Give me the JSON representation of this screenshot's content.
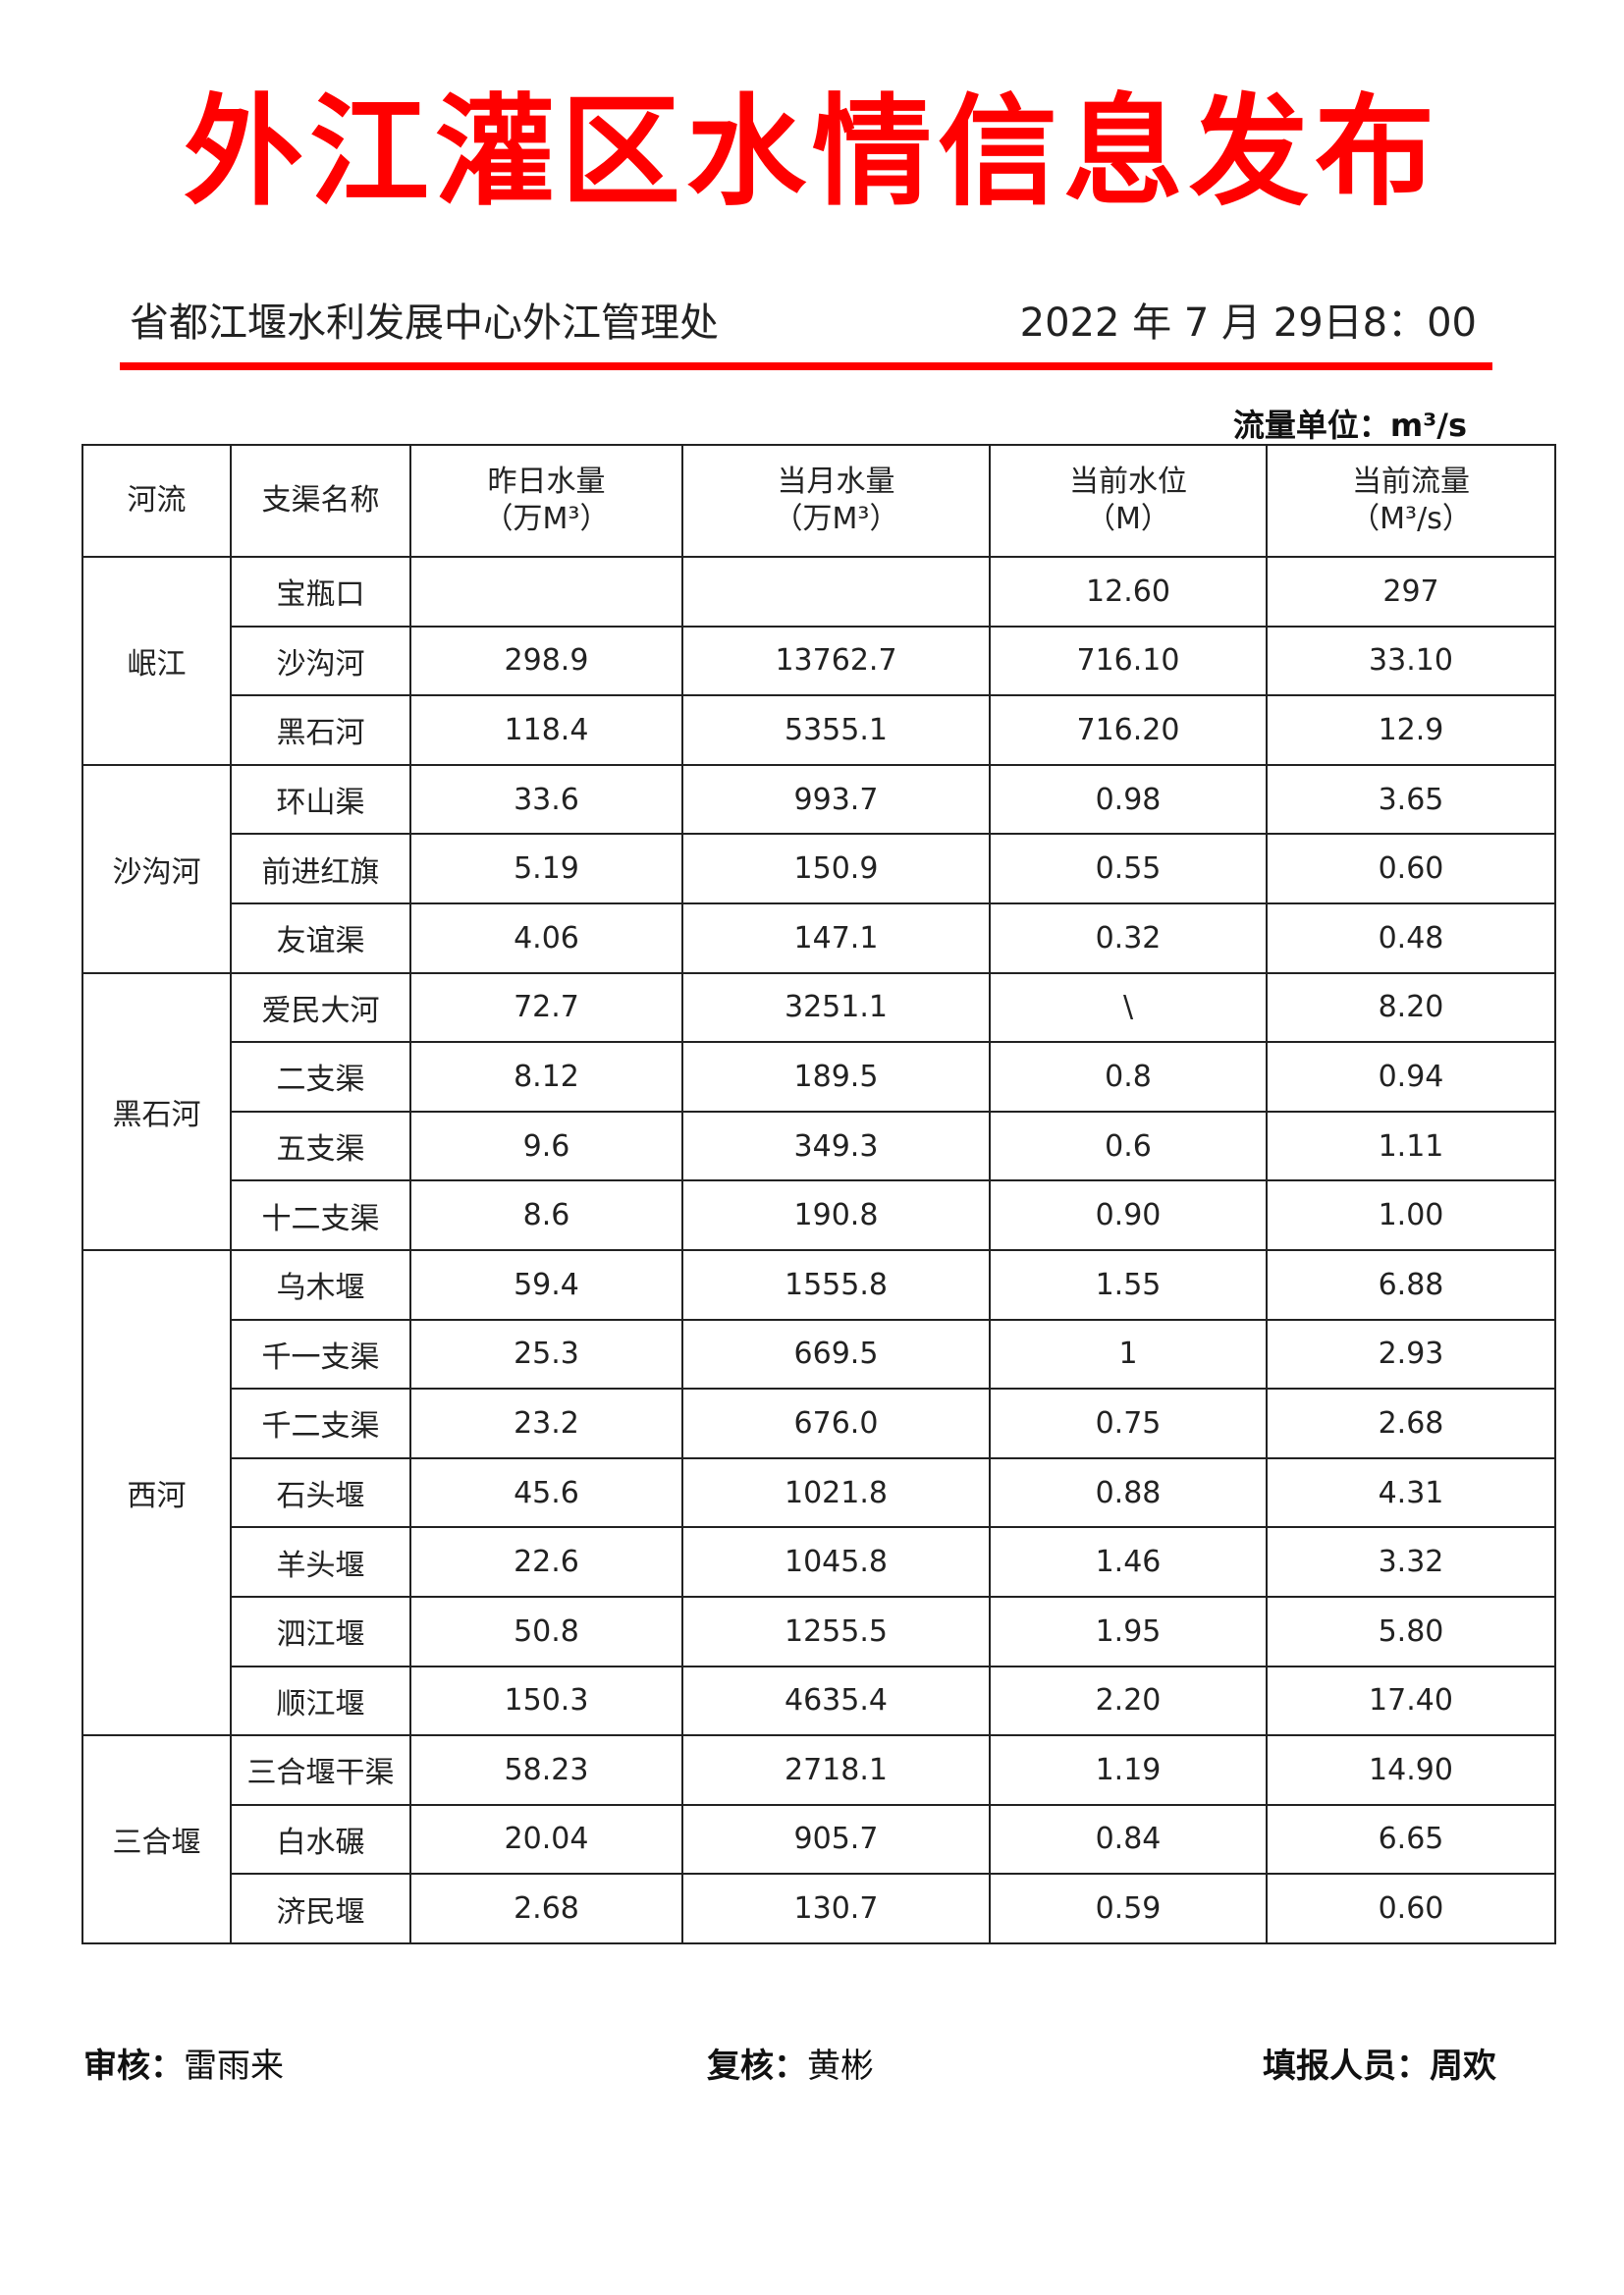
{
  "title": "外江灌区水情信息发布",
  "organization": "省都江堰水利发展中心外江管理处",
  "datetime": "2022 年 7 月 29日8：00",
  "flow_unit": "流量单位：m³/s",
  "colors": {
    "title": "#ff0000",
    "rule": "#ff0000"
  },
  "table": {
    "headers": [
      {
        "line1": "河流",
        "line2": ""
      },
      {
        "line1": "支渠名称",
        "line2": ""
      },
      {
        "line1": "昨日水量",
        "line2": "（万M³）"
      },
      {
        "line1": "当月水量",
        "line2": "（万M³）"
      },
      {
        "line1": "当前水位",
        "line2": "（M）"
      },
      {
        "line1": "当前流量",
        "line2": "（M³/s）"
      }
    ],
    "groups": [
      {
        "river": "岷江",
        "rows": [
          [
            "宝瓶口",
            "",
            "",
            "12.60",
            "297"
          ],
          [
            "沙沟河",
            "298.9",
            "13762.7",
            "716.10",
            "33.10"
          ],
          [
            "黑石河",
            "118.4",
            "5355.1",
            "716.20",
            "12.9"
          ]
        ]
      },
      {
        "river": "沙沟河",
        "rows": [
          [
            "环山渠",
            "33.6",
            "993.7",
            "0.98",
            "3.65"
          ],
          [
            "前进红旗",
            "5.19",
            "150.9",
            "0.55",
            "0.60"
          ],
          [
            "友谊渠",
            "4.06",
            "147.1",
            "0.32",
            "0.48"
          ]
        ]
      },
      {
        "river": "黑石河",
        "rows": [
          [
            "爱民大河",
            "72.7",
            "3251.1",
            "\\",
            "8.20"
          ],
          [
            "二支渠",
            "8.12",
            "189.5",
            "0.8",
            "0.94"
          ],
          [
            "五支渠",
            "9.6",
            "349.3",
            "0.6",
            "1.11"
          ],
          [
            "十二支渠",
            "8.6",
            "190.8",
            "0.90",
            "1.00"
          ]
        ]
      },
      {
        "river": "西河",
        "rows": [
          [
            "乌木堰",
            "59.4",
            "1555.8",
            "1.55",
            "6.88"
          ],
          [
            "千一支渠",
            "25.3",
            "669.5",
            "1",
            "2.93"
          ],
          [
            "千二支渠",
            "23.2",
            "676.0",
            "0.75",
            "2.68"
          ],
          [
            "石头堰",
            "45.6",
            "1021.8",
            "0.88",
            "4.31"
          ],
          [
            "羊头堰",
            "22.6",
            "1045.8",
            "1.46",
            "3.32"
          ],
          [
            "泗江堰",
            "50.8",
            "1255.5",
            "1.95",
            "5.80"
          ],
          [
            "顺江堰",
            "150.3",
            "4635.4",
            "2.20",
            "17.40"
          ]
        ]
      },
      {
        "river": "三合堰",
        "rows": [
          [
            "三合堰干渠",
            "58.23",
            "2718.1",
            "1.19",
            "14.90"
          ],
          [
            "白水碾",
            "20.04",
            "905.7",
            "0.84",
            "6.65"
          ],
          [
            "济民堰",
            "2.68",
            "130.7",
            "0.59",
            "0.60"
          ]
        ]
      }
    ]
  },
  "footer": {
    "reviewer_label": "审核：",
    "reviewer": "雷雨来",
    "rechecker_label": "复核：",
    "rechecker": "黄彬",
    "reporter_label": "填报人员：",
    "reporter": "周欢"
  }
}
